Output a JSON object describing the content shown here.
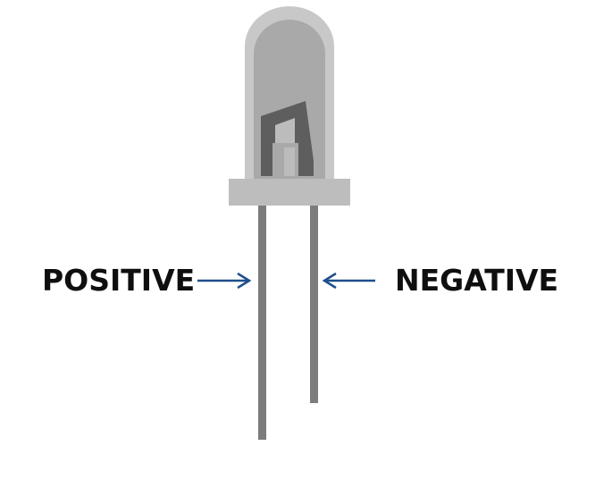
{
  "labels": {
    "positive": "POSITIVE",
    "negative": "NEGATIVE"
  },
  "colors": {
    "background": "#ffffff",
    "label_text": "#0f0f0f",
    "arrow": "#1f4e8c",
    "lens_outline": "#c8c8c8",
    "lens_inner": "#a9a9a9",
    "flange": "#bdbdbd",
    "leads": "#7c7c7c",
    "anvil_post": "#5e5e5e"
  },
  "icons": {
    "component": "led-icon",
    "arrow_positive": "arrow-right-icon",
    "arrow_negative": "arrow-left-icon"
  }
}
